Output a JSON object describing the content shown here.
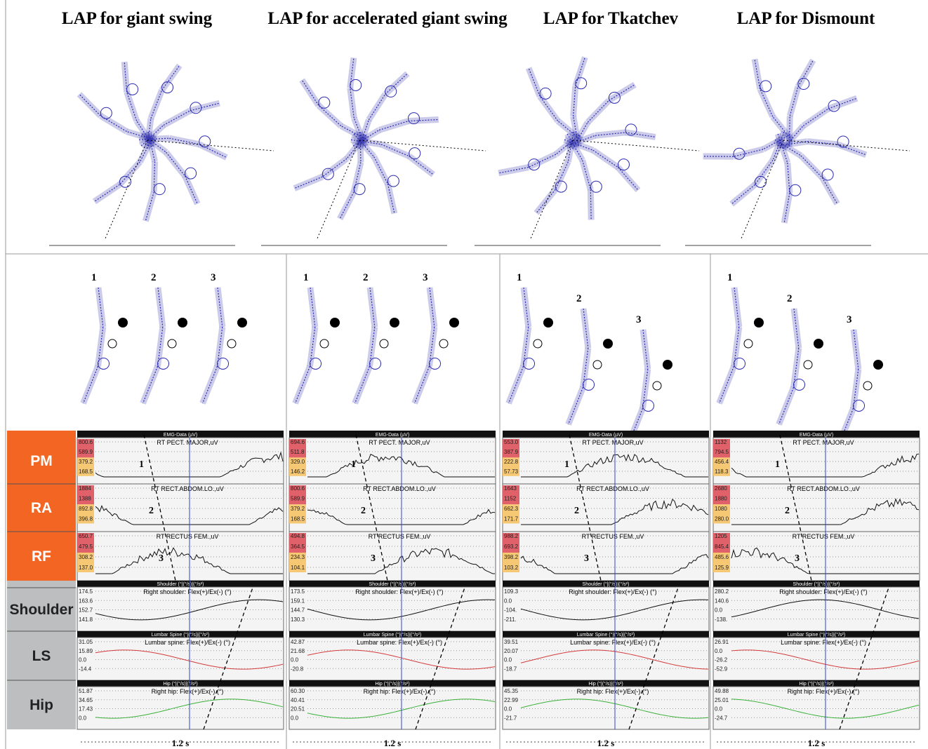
{
  "row_labels": [
    "PM",
    "RA",
    "RF",
    "Shoulder",
    "LS",
    "Hip"
  ],
  "columns": [
    {
      "title": "LAP for giant swing",
      "phases": [
        "1",
        "2",
        "3"
      ],
      "emg": {
        "header": "EMG-Data (µV)",
        "markers": [
          "1",
          "2",
          "3"
        ],
        "channels": [
          {
            "name": "RT PECT. MAJOR,uV",
            "ticks": [
              "800.6",
              "589.9",
              "379.2",
              "168.5"
            ]
          },
          {
            "name": "RT RECT.ABDOM.LO.,uV",
            "ticks": [
              "1884",
              "1388",
              "892.8",
              "396.8"
            ]
          },
          {
            "name": "RT RECTUS FEM.,uV",
            "ticks": [
              "650.7",
              "479.5",
              "308.2",
              "137.0"
            ]
          }
        ]
      },
      "kinematics": [
        {
          "header": "Shoulder (°|(°/s)|(°/s²)",
          "name": "Right shoulder: Flex(+)/Ex(-) (°)",
          "ticks": [
            "174.5",
            "163.6",
            "152.7",
            "141.8"
          ]
        },
        {
          "header": "Lumbar Spine (°|(°/s)|(°/s²)",
          "name": "Lumbar spine: Flex(+)/Ex(-) (°)",
          "ticks": [
            "31.05",
            "15.89",
            "0.0",
            "-14.4"
          ]
        },
        {
          "header": "Hip (°|(°/s)|(°/s²)",
          "name": "Right hip: Flex(+)/Ex(-) (°)",
          "ticks": [
            "51.87",
            "34.65",
            "17.43",
            "0.0"
          ]
        }
      ],
      "time": "1.2 s"
    },
    {
      "title": "LAP for accelerated giant swing",
      "phases": [
        "1",
        "2",
        "3"
      ],
      "emg": {
        "header": "EMG-Data (µV)",
        "markers": [
          "1",
          "2",
          "3"
        ],
        "channels": [
          {
            "name": "RT PECT. MAJOR,uV",
            "ticks": [
              "694.6",
              "511.8",
              "329.0",
              "146.2"
            ]
          },
          {
            "name": "RT RECT.ABDOM.LO.,uV",
            "ticks": [
              "800.6",
              "589.9",
              "379.2",
              "168.5"
            ]
          },
          {
            "name": "RT RECTUS FEM.,uV",
            "ticks": [
              "494.8",
              "364.5",
              "234.3",
              "104.1"
            ]
          }
        ]
      },
      "kinematics": [
        {
          "header": "Shoulder (°|(°/s)|(°/s²)",
          "name": "Right shoulder: Flex(+)/Ex(-) (°)",
          "ticks": [
            "173.5",
            "159.1",
            "144.7",
            "130.3"
          ]
        },
        {
          "header": "Lumbar Spine (°|(°/s)|(°/s²)",
          "name": "Lumbar spine: Flex(+)/Ex(-) (°)",
          "ticks": [
            "42.87",
            "21.68",
            "0.0",
            "-20.8"
          ]
        },
        {
          "header": "Hip (°|(°/s)|(°/s²)",
          "name": "Right hip: Flex(+)/Ex(-) (°)",
          "ticks": [
            "60.30",
            "40.41",
            "20.51",
            "0.0"
          ]
        }
      ],
      "time": "1.2 s"
    },
    {
      "title": "LAP for Tkatchev",
      "phases": [
        "1",
        "2",
        "3"
      ],
      "emg": {
        "header": "EMG-Data (µV)",
        "markers": [
          "1",
          "2",
          "3"
        ],
        "channels": [
          {
            "name": "RT PECT. MAJOR,uV",
            "ticks": [
              "553.0",
              "387.9",
              "222.8",
              "57.73"
            ]
          },
          {
            "name": "RT RECT.ABDOM.LO.,uV",
            "ticks": [
              "1643",
              "1152",
              "662.3",
              "171.7"
            ]
          },
          {
            "name": "RT RECTUS FEM.,uV",
            "ticks": [
              "988.2",
              "693.2",
              "398.2",
              "103.2"
            ]
          }
        ]
      },
      "kinematics": [
        {
          "header": "Shoulder (°|(°/s)|(°/s²)",
          "name": "Right shoulder: Flex(+)/Ex(-) (°)",
          "ticks": [
            "109.3",
            "0.0",
            "-104.",
            "-211."
          ]
        },
        {
          "header": "Lumbar Spine (°|(°/s)|(°/s²)",
          "name": "Lumbar spine: Flex(+)/Ex(-) (°)",
          "ticks": [
            "39.51",
            "20.07",
            "0.0",
            "-18.7"
          ]
        },
        {
          "header": "Hip (°|(°/s)|(°/s²)",
          "name": "Right hip: Flex(+)/Ex(-) (°)",
          "ticks": [
            "45.35",
            "22.99",
            "0.0",
            "-21.7"
          ]
        }
      ],
      "time": "1.2 s"
    },
    {
      "title": "LAP for Dismount",
      "phases": [
        "1",
        "2",
        "3"
      ],
      "emg": {
        "header": "EMG-Data (µV)",
        "markers": [
          "1",
          "2",
          "3"
        ],
        "channels": [
          {
            "name": "RT PECT. MAJOR,uV",
            "ticks": [
              "1132",
              "794.5",
              "456.4",
              "118.3"
            ]
          },
          {
            "name": "RT RECT.ABDOM.LO.,uV",
            "ticks": [
              "2680",
              "1880",
              "1080",
              "280.0"
            ]
          },
          {
            "name": "RT RECTUS FEM.,uV",
            "ticks": [
              "1205",
              "845.4",
              "485.6",
              "125.9"
            ]
          }
        ]
      },
      "kinematics": [
        {
          "header": "Shoulder (°|(°/s)|(°/s²)",
          "name": "Right shoulder: Flex(+)/Ex(-) (°)",
          "ticks": [
            "280.2",
            "140.6",
            "0.0",
            "-138."
          ]
        },
        {
          "header": "Lumbar Spine (°|(°/s)|(°/s²)",
          "name": "Lumbar spine: Flex(+)/Ex(-) (°)",
          "ticks": [
            "26.91",
            "0.0",
            "-26.2",
            "-52.9"
          ]
        },
        {
          "header": "Hip (°|(°/s)|(°/s²)",
          "name": "Right hip: Flex(+)/Ex(-) (°)",
          "ticks": [
            "49.88",
            "25.01",
            "0.0",
            "-24.7"
          ]
        }
      ],
      "time": "1.2 s"
    }
  ]
}
